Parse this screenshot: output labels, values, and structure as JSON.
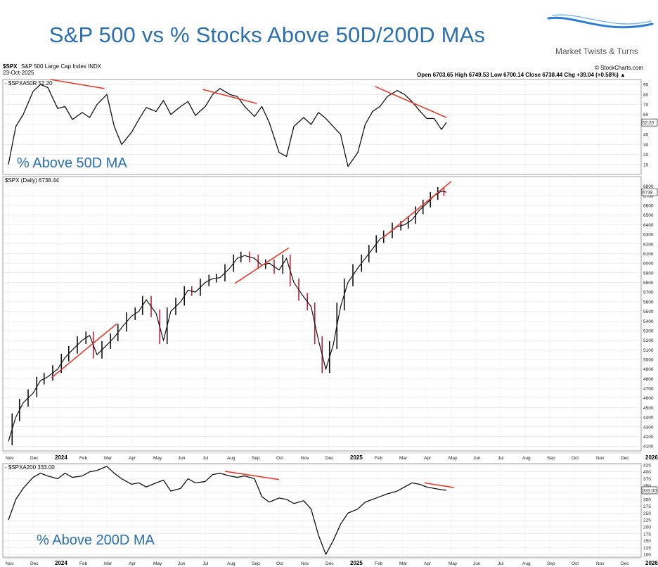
{
  "title": "S&P 500 vs % Stocks Above 50D/200D MAs",
  "brand": {
    "name": "Market Twists & Turns",
    "swoosh_color": "#2a7fd4"
  },
  "colors": {
    "title": "#2a6fb0",
    "trend": "#e53b2e",
    "line": "#111111",
    "down_bar": "#c0203a",
    "grid": "#d8d8d8"
  },
  "chart_data": [
    {
      "type": "line",
      "symbol": "$SPXA50R",
      "legend_text": "- $SPXA50R 52.20",
      "last_value_label": "52.20",
      "overlay_label": "% Above 50D MA",
      "ylim": [
        0,
        95
      ],
      "yticks": [
        10,
        20,
        30,
        40,
        50,
        60,
        70,
        80,
        90
      ],
      "x": [
        0,
        0.3,
        0.6,
        1,
        1.3,
        1.6,
        2,
        2.3,
        2.6,
        3,
        3.3,
        3.6,
        4,
        4.3,
        4.6,
        5,
        5.3,
        5.6,
        6,
        6.3,
        6.6,
        7,
        7.3,
        7.6,
        8,
        8.3,
        8.6,
        9,
        9.3,
        9.6,
        10,
        10.3,
        10.6,
        11,
        11.3,
        11.6,
        12,
        12.3,
        12.6,
        12.9,
        13.2,
        13.5,
        13.8,
        14.2,
        14.5,
        14.8,
        15.1,
        15.4,
        15.8,
        16.1,
        16.4,
        16.7,
        17,
        17.3,
        17.6,
        17.8
      ],
      "values": [
        10,
        48,
        60,
        83,
        90,
        87,
        66,
        68,
        55,
        62,
        57,
        70,
        80,
        48,
        30,
        42,
        55,
        67,
        63,
        74,
        60,
        68,
        73,
        59,
        68,
        80,
        86,
        80,
        78,
        68,
        58,
        68,
        52,
        22,
        18,
        48,
        57,
        50,
        62,
        56,
        48,
        40,
        8,
        22,
        50,
        63,
        68,
        78,
        84,
        80,
        73,
        64,
        56,
        56,
        45,
        52
      ],
      "trend_lines": [
        {
          "x": [
            1.7,
            3.9
          ],
          "y": [
            95,
            86
          ]
        },
        {
          "x": [
            7.9,
            10.1
          ],
          "y": [
            85,
            71
          ]
        },
        {
          "x": [
            14.9,
            17.8
          ],
          "y": [
            88,
            57
          ]
        }
      ]
    },
    {
      "type": "ohlc",
      "symbol": "$SPX",
      "legend_text": "$SPX (Daily) 6738.44",
      "last_value_label": "6738",
      "header": {
        "symbol": "$SPX",
        "name": "S&P 500 Large Cap Index INDX",
        "date": "23-Oct-2025",
        "source": "© StockCharts.com",
        "quote": "Open 6703.65  High 6749.53  Low 6700.14  Close 6738.44  Chg +39.04 (+0.58%) ▲"
      },
      "ylim": [
        4050,
        6900
      ],
      "yticks": [
        4100,
        4200,
        4300,
        4400,
        4500,
        4600,
        4700,
        4800,
        4900,
        5000,
        5100,
        5200,
        5300,
        5400,
        5500,
        5600,
        5700,
        5800,
        5900,
        6000,
        6100,
        6200,
        6300,
        6400,
        6500,
        6600,
        6700,
        6800
      ],
      "x": [
        0,
        0.3,
        0.6,
        1,
        1.3,
        1.6,
        2,
        2.3,
        2.6,
        3,
        3.3,
        3.6,
        4,
        4.3,
        4.6,
        5,
        5.3,
        5.6,
        6,
        6.3,
        6.6,
        7,
        7.3,
        7.6,
        8,
        8.3,
        8.6,
        9,
        9.3,
        9.6,
        10,
        10.3,
        10.6,
        11,
        11.3,
        11.6,
        12,
        12.3,
        12.6,
        12.9,
        13.2,
        13.5,
        13.8,
        14.2,
        14.5,
        14.8,
        15.1,
        15.4,
        15.8,
        16.1,
        16.4,
        16.7,
        17,
        17.3,
        17.6,
        17.8
      ],
      "values": [
        4150,
        4400,
        4550,
        4650,
        4780,
        4820,
        4900,
        5020,
        5100,
        5200,
        5250,
        5050,
        5150,
        5230,
        5330,
        5450,
        5500,
        5620,
        5480,
        5200,
        5500,
        5600,
        5720,
        5700,
        5800,
        5840,
        5850,
        5950,
        6050,
        6080,
        6050,
        5980,
        6000,
        5930,
        6050,
        5800,
        5650,
        5550,
        5200,
        4900,
        5150,
        5550,
        5800,
        5950,
        6050,
        6150,
        6250,
        6300,
        6380,
        6400,
        6450,
        6550,
        6620,
        6700,
        6750,
        6738
      ],
      "trend_lines": [
        {
          "x": [
            1.75,
            4.4
          ],
          "y": [
            4810,
            5370
          ]
        },
        {
          "x": [
            9.2,
            11.4
          ],
          "y": [
            5790,
            6160
          ]
        },
        {
          "x": [
            15.2,
            18.0
          ],
          "y": [
            6260,
            6850
          ]
        }
      ]
    },
    {
      "type": "line",
      "symbol": "$SPXA200",
      "legend_text": "- $SPXA200 333.00",
      "last_value_label": "333.00",
      "overlay_label": "% Above 200D MA",
      "ylim": [
        90,
        430
      ],
      "yticks": [
        100,
        125,
        150,
        175,
        200,
        225,
        250,
        275,
        300,
        325,
        350,
        375,
        400,
        425
      ],
      "x": [
        0,
        0.3,
        0.6,
        1,
        1.3,
        1.6,
        2,
        2.3,
        2.6,
        3,
        3.3,
        3.6,
        4,
        4.3,
        4.6,
        5,
        5.3,
        5.6,
        6,
        6.3,
        6.6,
        7,
        7.3,
        7.6,
        8,
        8.3,
        8.6,
        9,
        9.3,
        9.6,
        10,
        10.3,
        10.6,
        11,
        11.3,
        11.6,
        12,
        12.3,
        12.6,
        12.9,
        13.2,
        13.5,
        13.8,
        14.2,
        14.5,
        14.8,
        15.1,
        15.4,
        15.8,
        16.1,
        16.4,
        16.7,
        17,
        17.3,
        17.6,
        17.8
      ],
      "values": [
        225,
        300,
        340,
        380,
        395,
        385,
        375,
        395,
        380,
        385,
        400,
        405,
        420,
        395,
        375,
        355,
        360,
        345,
        360,
        370,
        330,
        340,
        375,
        360,
        365,
        390,
        395,
        385,
        380,
        385,
        375,
        310,
        290,
        305,
        300,
        285,
        295,
        265,
        170,
        100,
        150,
        210,
        250,
        265,
        290,
        300,
        310,
        320,
        330,
        345,
        360,
        355,
        345,
        340,
        335,
        333
      ],
      "trend_lines": [
        {
          "x": [
            8.8,
            11.0
          ],
          "y": [
            402,
            372
          ]
        },
        {
          "x": [
            16.9,
            18.1
          ],
          "y": [
            360,
            343
          ]
        }
      ]
    }
  ],
  "x_axis": {
    "labels": [
      "Nov",
      "Dec",
      "2024",
      "Feb",
      "Mar",
      "Apr",
      "May",
      "Jun",
      "Jul",
      "Aug",
      "Sep",
      "Oct",
      "Nov",
      "Dec",
      "2025",
      "Feb",
      "Mar",
      "Apr",
      "May",
      "Jun",
      "Jul",
      "Aug",
      "Sep",
      "Oct",
      "Nov",
      "Dec",
      "2026"
    ],
    "bold_labels": [
      "2024",
      "2025",
      "2026"
    ]
  }
}
